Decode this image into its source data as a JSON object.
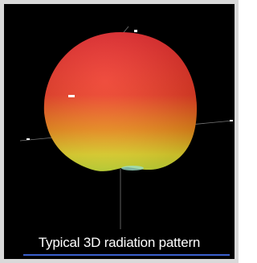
{
  "caption": "Typical 3D radiation pattern"
}
